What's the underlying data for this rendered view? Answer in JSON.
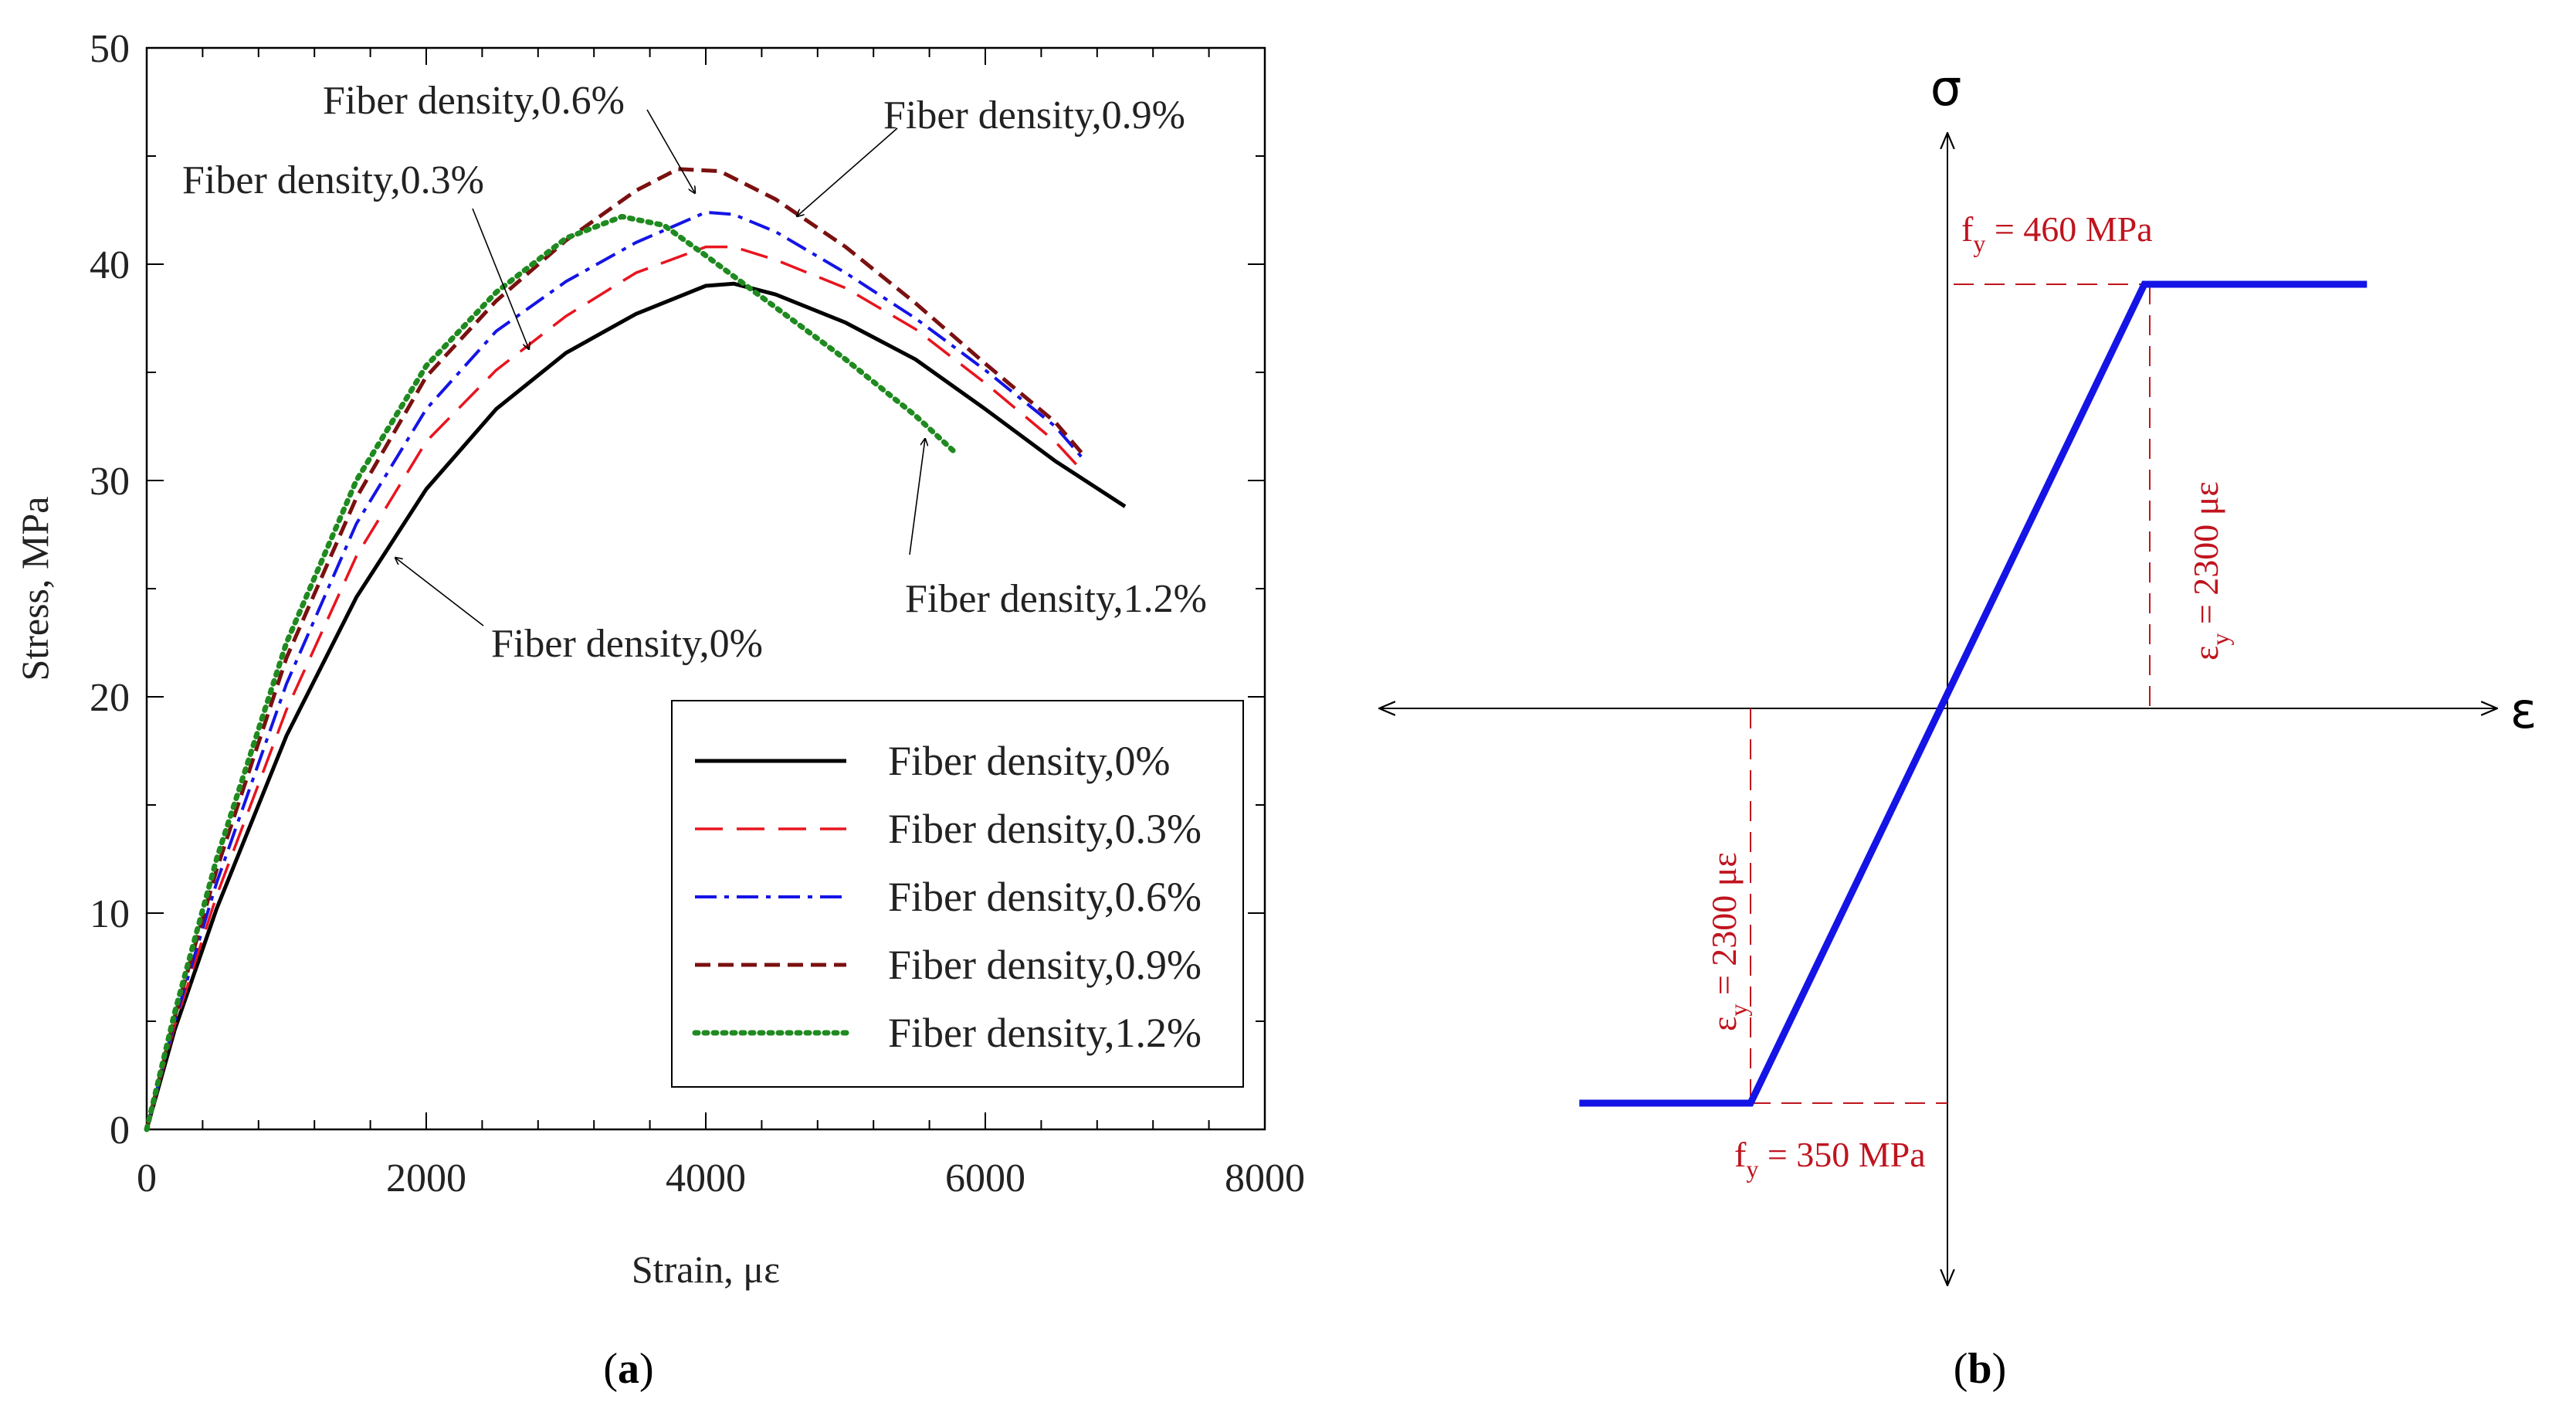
{
  "figure": {
    "panel_a_label": "a",
    "panel_b_label": "b"
  },
  "chart_data": [
    {
      "type": "line",
      "title": "",
      "xlabel": "Strain, με",
      "ylabel": "Stress, MPa",
      "xlim": [
        0,
        8000
      ],
      "ylim": [
        0,
        50
      ],
      "xticks": [
        0,
        2000,
        4000,
        6000,
        8000
      ],
      "yticks": [
        0,
        10,
        20,
        30,
        40,
        50
      ],
      "grid": false,
      "legend_position": "bottom-right",
      "series": [
        {
          "name": "Fiber density,0%",
          "color": "#000000",
          "dash": "solid",
          "points": [
            [
              0,
              0
            ],
            [
              200,
              4.6
            ],
            [
              500,
              10.2
            ],
            [
              1000,
              18.2
            ],
            [
              1500,
              24.6
            ],
            [
              2000,
              29.6
            ],
            [
              2500,
              33.3
            ],
            [
              3000,
              35.9
            ],
            [
              3500,
              37.7
            ],
            [
              4000,
              39.0
            ],
            [
              4200,
              39.1
            ],
            [
              4500,
              38.6
            ],
            [
              5000,
              37.3
            ],
            [
              5500,
              35.6
            ],
            [
              6000,
              33.3
            ],
            [
              6500,
              30.9
            ],
            [
              7000,
              28.8
            ]
          ],
          "annotation": "Fiber density,0%"
        },
        {
          "name": "Fiber density,0.3%",
          "color": "#e8141e",
          "dash": "long-dash",
          "points": [
            [
              0,
              0
            ],
            [
              200,
              4.8
            ],
            [
              500,
              10.8
            ],
            [
              1000,
              19.4
            ],
            [
              1500,
              26.5
            ],
            [
              2000,
              31.8
            ],
            [
              2500,
              35.1
            ],
            [
              3000,
              37.6
            ],
            [
              3500,
              39.6
            ],
            [
              4000,
              40.8
            ],
            [
              4200,
              40.8
            ],
            [
              4500,
              40.2
            ],
            [
              5000,
              38.9
            ],
            [
              5500,
              37.0
            ],
            [
              6000,
              34.5
            ],
            [
              6500,
              31.8
            ],
            [
              6700,
              30.4
            ]
          ],
          "annotation": "Fiber density,0.3%"
        },
        {
          "name": "Fiber density,0.6%",
          "color": "#1414e6",
          "dash": "dash-dot",
          "points": [
            [
              0,
              0
            ],
            [
              200,
              5.0
            ],
            [
              500,
              11.4
            ],
            [
              1000,
              20.6
            ],
            [
              1500,
              28.0
            ],
            [
              2000,
              33.3
            ],
            [
              2500,
              36.9
            ],
            [
              3000,
              39.2
            ],
            [
              3500,
              41.0
            ],
            [
              4000,
              42.4
            ],
            [
              4200,
              42.3
            ],
            [
              4500,
              41.5
            ],
            [
              5000,
              39.6
            ],
            [
              5500,
              37.5
            ],
            [
              6000,
              35.1
            ],
            [
              6500,
              32.5
            ],
            [
              6700,
              31.0
            ]
          ],
          "annotation": "Fiber density,0.6%"
        },
        {
          "name": "Fiber density,0.9%",
          "color": "#7b1010",
          "dash": "short-dash",
          "points": [
            [
              0,
              0
            ],
            [
              200,
              5.2
            ],
            [
              500,
              12.0
            ],
            [
              1000,
              21.8
            ],
            [
              1500,
              29.2
            ],
            [
              2000,
              34.8
            ],
            [
              2500,
              38.3
            ],
            [
              3000,
              41.1
            ],
            [
              3500,
              43.4
            ],
            [
              3800,
              44.4
            ],
            [
              4100,
              44.3
            ],
            [
              4500,
              43.0
            ],
            [
              5000,
              40.8
            ],
            [
              5500,
              38.2
            ],
            [
              6000,
              35.4
            ],
            [
              6500,
              32.7
            ],
            [
              6700,
              31.2
            ]
          ],
          "annotation": "Fiber density,0.9%"
        },
        {
          "name": "Fiber density,1.2%",
          "color": "#1f8a1f",
          "dash": "dotted",
          "points": [
            [
              0,
              0
            ],
            [
              200,
              5.4
            ],
            [
              500,
              12.5
            ],
            [
              1000,
              22.5
            ],
            [
              1500,
              30.0
            ],
            [
              2000,
              35.3
            ],
            [
              2500,
              38.7
            ],
            [
              3000,
              41.2
            ],
            [
              3400,
              42.2
            ],
            [
              3700,
              41.8
            ],
            [
              4000,
              40.4
            ],
            [
              4500,
              38.0
            ],
            [
              5000,
              35.6
            ],
            [
              5500,
              33.0
            ],
            [
              5800,
              31.2
            ]
          ],
          "annotation": "Fiber density,1.2%"
        }
      ]
    },
    {
      "type": "line",
      "title": "",
      "xlabel": "ε",
      "ylabel": "σ",
      "axis_arrows": "both directions",
      "series": [
        {
          "name": "",
          "color": "#1414e6",
          "points_description_free": true,
          "points": [
            [
              -4300,
              -350
            ],
            [
              -2300,
              -350
            ],
            [
              2300,
              460
            ],
            [
              4900,
              460
            ]
          ]
        }
      ],
      "annotations": {
        "fy_top_main": "f",
        "fy_top_sub": "y",
        "fy_top_value": " = 460 MPa",
        "fy_bottom_main": "f",
        "fy_bottom_sub": "y",
        "fy_bottom_value": " = 350 MPa",
        "eps_right_main": "ε",
        "eps_right_sub": "y",
        "eps_right_value": " = 2300 με",
        "eps_left_main": "ε",
        "eps_left_sub": "y",
        "eps_left_value": " = 2300 με"
      },
      "guide_color": "#c0141e"
    }
  ]
}
